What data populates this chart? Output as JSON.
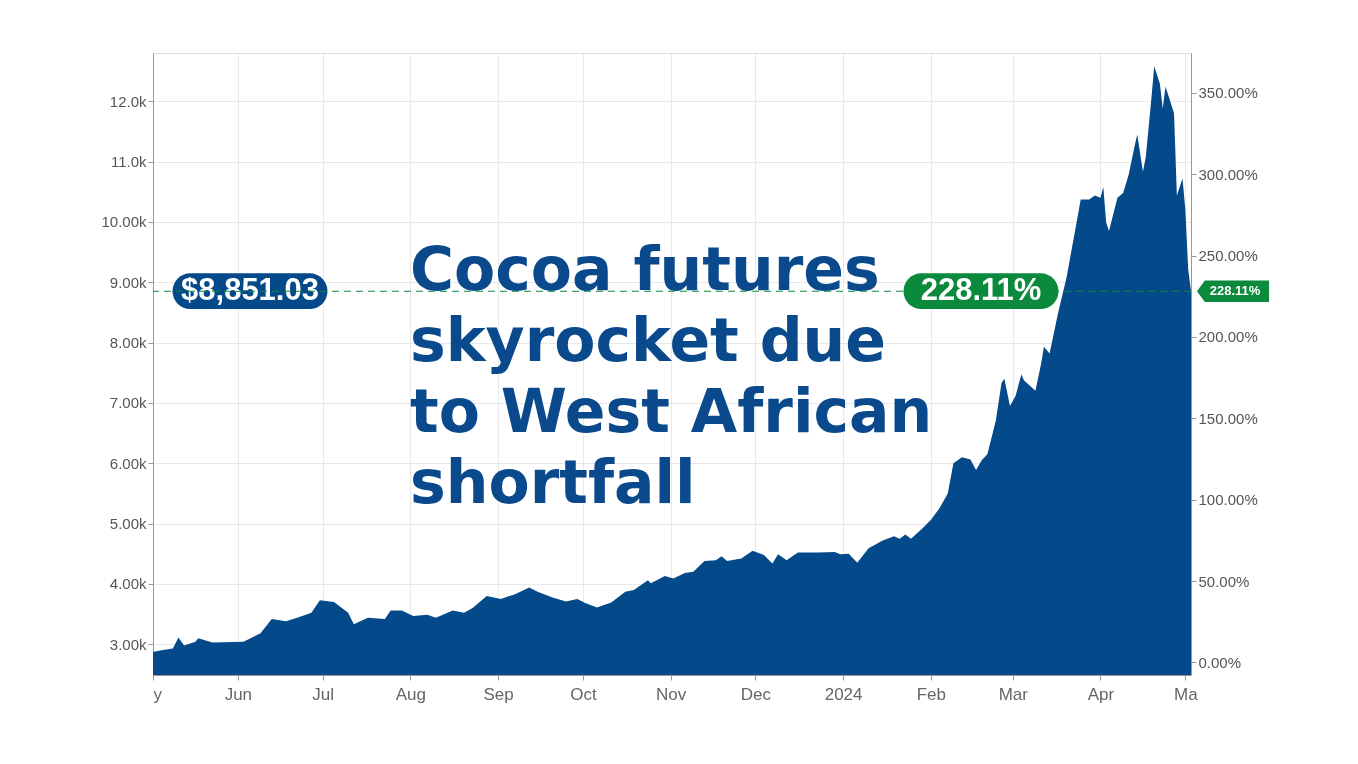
{
  "chart_data": {
    "type": "area",
    "title": "Cocoa futures skyrocket due to West African shortfall",
    "x": [
      "2023-05-02",
      "2023-05-05",
      "2023-05-09",
      "2023-05-11",
      "2023-05-13",
      "2023-05-17",
      "2023-05-18",
      "2023-05-23",
      "2023-06-03",
      "2023-06-09",
      "2023-06-13",
      "2023-06-18",
      "2023-06-22",
      "2023-06-27",
      "2023-06-30",
      "2023-07-05",
      "2023-07-10",
      "2023-07-12",
      "2023-07-17",
      "2023-07-23",
      "2023-07-25",
      "2023-07-29",
      "2023-08-02",
      "2023-08-07",
      "2023-08-10",
      "2023-08-16",
      "2023-08-20",
      "2023-08-23",
      "2023-08-28",
      "2023-09-02",
      "2023-09-07",
      "2023-09-12",
      "2023-09-15",
      "2023-09-20",
      "2023-09-25",
      "2023-09-29",
      "2023-10-02",
      "2023-10-06",
      "2023-10-11",
      "2023-10-16",
      "2023-10-19",
      "2023-10-24",
      "2023-10-25",
      "2023-10-30",
      "2023-11-02",
      "2023-11-06",
      "2023-11-09",
      "2023-11-13",
      "2023-11-17",
      "2023-11-19",
      "2023-11-21",
      "2023-11-26",
      "2023-11-30",
      "2023-12-04",
      "2023-12-07",
      "2023-12-09",
      "2023-12-12",
      "2023-12-16",
      "2023-12-23",
      "2023-12-29",
      "2023-12-31",
      "2024-01-03",
      "2024-01-06",
      "2024-01-10",
      "2024-01-15",
      "2024-01-19",
      "2024-01-21",
      "2024-01-23",
      "2024-01-25",
      "2024-01-29",
      "2024-02-01",
      "2024-02-04",
      "2024-02-07",
      "2024-02-09",
      "2024-02-12",
      "2024-02-15",
      "2024-02-17",
      "2024-02-19",
      "2024-02-21",
      "2024-02-24",
      "2024-02-26",
      "2024-02-27",
      "2024-02-29",
      "2024-03-02",
      "2024-03-04",
      "2024-03-05",
      "2024-03-09",
      "2024-03-11",
      "2024-03-12",
      "2024-03-14",
      "2024-03-17",
      "2024-03-20",
      "2024-03-23",
      "2024-03-25",
      "2024-03-28",
      "2024-03-30",
      "2024-04-01",
      "2024-04-02",
      "2024-04-03",
      "2024-04-04",
      "2024-04-07",
      "2024-04-09",
      "2024-04-11",
      "2024-04-13",
      "2024-04-14",
      "2024-04-16",
      "2024-04-17",
      "2024-04-19",
      "2024-04-20",
      "2024-04-22",
      "2024-04-23",
      "2024-04-24",
      "2024-04-27",
      "2024-04-28",
      "2024-04-30",
      "2024-05-01",
      "2024-05-02",
      "2024-05-03"
    ],
    "values": [
      2870,
      2900,
      2930,
      3110,
      2980,
      3040,
      3100,
      3030,
      3040,
      3180,
      3420,
      3380,
      3440,
      3520,
      3730,
      3700,
      3520,
      3330,
      3440,
      3420,
      3560,
      3560,
      3470,
      3490,
      3440,
      3560,
      3520,
      3600,
      3800,
      3750,
      3830,
      3940,
      3870,
      3780,
      3710,
      3750,
      3680,
      3610,
      3690,
      3870,
      3900,
      4060,
      4010,
      4130,
      4090,
      4180,
      4200,
      4380,
      4390,
      4460,
      4380,
      4420,
      4550,
      4480,
      4340,
      4490,
      4390,
      4520,
      4520,
      4530,
      4490,
      4500,
      4350,
      4590,
      4720,
      4790,
      4750,
      4820,
      4750,
      4920,
      5060,
      5250,
      5500,
      6000,
      6100,
      6060,
      5890,
      6050,
      6150,
      6710,
      7330,
      7400,
      6950,
      7120,
      7470,
      7370,
      7200,
      7650,
      7930,
      7820,
      8490,
      9080,
      9850,
      10370,
      10370,
      10440,
      10400,
      10580,
      9990,
      9850,
      10400,
      10480,
      10790,
      11240,
      11450,
      10830,
      11070,
      12050,
      12580,
      12290,
      11880,
      12240,
      11800,
      10440,
      10720,
      10200,
      9220,
      8850
    ],
    "color": "#04498a",
    "xlim": [
      "2023-05-02",
      "2024-05-03"
    ],
    "xticks": [
      {
        "value": "2023-05-02",
        "label": "y"
      },
      {
        "value": "2023-06-01",
        "label": "Jun"
      },
      {
        "value": "2023-07-01",
        "label": "Jul"
      },
      {
        "value": "2023-08-01",
        "label": "Aug"
      },
      {
        "value": "2023-09-01",
        "label": "Sep"
      },
      {
        "value": "2023-10-01",
        "label": "Oct"
      },
      {
        "value": "2023-11-01",
        "label": "Nov"
      },
      {
        "value": "2023-12-01",
        "label": "Dec"
      },
      {
        "value": "2024-01-01",
        "label": "2024"
      },
      {
        "value": "2024-02-01",
        "label": "Feb"
      },
      {
        "value": "2024-03-01",
        "label": "Mar"
      },
      {
        "value": "2024-04-01",
        "label": "Apr"
      },
      {
        "value": "2024-05-01",
        "label": "Ma"
      }
    ],
    "ylim": [
      2490,
      12800
    ],
    "yticks": [
      {
        "value": 3000,
        "label": "3.00k"
      },
      {
        "value": 4000,
        "label": "4.00k"
      },
      {
        "value": 5000,
        "label": "5.00k"
      },
      {
        "value": 6000,
        "label": "6.00k"
      },
      {
        "value": 7000,
        "label": "7.00k"
      },
      {
        "value": 8000,
        "label": "8.00k"
      },
      {
        "value": 9000,
        "label": "9.00k"
      },
      {
        "value": 10000,
        "label": "10.00k"
      },
      {
        "value": 11000,
        "label": "11.0k"
      },
      {
        "value": 12000,
        "label": "12.0k"
      }
    ],
    "y2lim": [
      -7.7,
      374.5
    ],
    "y2ticks": [
      {
        "value": 0,
        "label": "0.00%"
      },
      {
        "value": 50,
        "label": "50.00%"
      },
      {
        "value": 100,
        "label": "100.00%"
      },
      {
        "value": 150,
        "label": "150.00%"
      },
      {
        "value": 200,
        "label": "200.00%"
      },
      {
        "value": 250,
        "label": "250.00%"
      },
      {
        "value": 300,
        "label": "300.00%"
      },
      {
        "value": 350,
        "label": "350.00%"
      }
    ],
    "annotations": [
      {
        "text": "$8,851.03",
        "y": 8851.03
      }
    ],
    "ref_lines": [
      {
        "axis": "y2",
        "value": 228.11,
        "label": "228.11%",
        "color": "#0b8a3e",
        "line_style": "dashed"
      }
    ],
    "grid": true
  }
}
